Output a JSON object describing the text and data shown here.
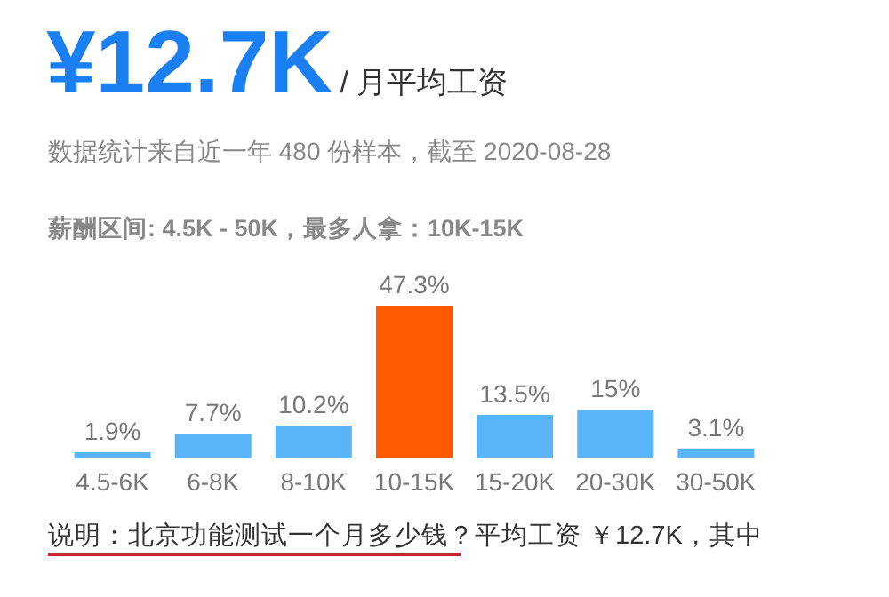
{
  "chart_data": {
    "type": "bar",
    "title": "¥12.7K",
    "subtitle": "/ 月平均工资",
    "annotations": [
      "数据统计来自近一年 480 份样本，截至 2020-08-28",
      "薪酬区间: 4.5K - 50K，最多人拿：10K-15K",
      "说明：北京功能测试一个月多少钱？平均工资 ￥12.7K，其中"
    ],
    "categories": [
      "4.5-6K",
      "6-8K",
      "8-10K",
      "10-15K",
      "15-20K",
      "20-30K",
      "30-50K"
    ],
    "values": [
      1.9,
      7.7,
      10.2,
      47.3,
      13.5,
      15,
      3.1
    ],
    "colors": [
      "#5ab4f8",
      "#5ab4f8",
      "#5ab4f8",
      "#ff5a00",
      "#5ab4f8",
      "#5ab4f8",
      "#5ab4f8"
    ],
    "value_labels": [
      "1.9%",
      "7.7%",
      "10.2%",
      "47.3%",
      "13.5%",
      "15%",
      "3.1%"
    ],
    "grid": false,
    "legend": false
  }
}
